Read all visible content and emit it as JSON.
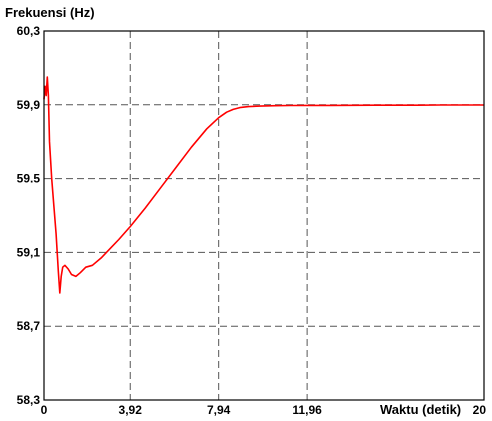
{
  "chart_data": {
    "type": "line",
    "ylabel": "Frekuensi (Hz)",
    "xlabel": "Waktu (detik)",
    "ylim": [
      58.3,
      60.3
    ],
    "xlim": [
      0,
      20
    ],
    "yticks": [
      {
        "value": 60.3,
        "label": "60,3"
      },
      {
        "value": 59.9,
        "label": "59,9"
      },
      {
        "value": 59.5,
        "label": "59.5"
      },
      {
        "value": 59.1,
        "label": "59,1"
      },
      {
        "value": 58.7,
        "label": "58,7"
      },
      {
        "value": 58.3,
        "label": "58,3"
      }
    ],
    "xticks": [
      {
        "value": 0,
        "label": "0"
      },
      {
        "value": 3.92,
        "label": "3,92"
      },
      {
        "value": 7.94,
        "label": "7,94"
      },
      {
        "value": 11.96,
        "label": "11,96"
      },
      {
        "value": 20,
        "label": "20"
      }
    ],
    "grid": true,
    "series": [
      {
        "color": "#ff0000",
        "x": [
          0,
          0.05,
          0.1,
          0.15,
          0.2,
          0.25,
          0.3,
          0.35,
          0.45,
          0.55,
          0.65,
          0.72,
          0.78,
          0.85,
          0.95,
          1.1,
          1.25,
          1.45,
          1.65,
          1.9,
          2.2,
          2.6,
          3.0,
          3.4,
          3.92,
          4.6,
          5.3,
          6.0,
          6.7,
          7.4,
          7.94,
          8.3,
          8.6,
          8.9,
          9.3,
          9.8,
          10.5,
          11.2,
          11.96,
          13,
          15,
          17,
          18,
          20
        ],
        "values": [
          59.93,
          60.0,
          59.95,
          60.05,
          59.95,
          59.7,
          59.6,
          59.5,
          59.35,
          59.2,
          59.0,
          58.88,
          58.97,
          59.02,
          59.03,
          59.01,
          58.98,
          58.97,
          58.99,
          59.02,
          59.03,
          59.07,
          59.12,
          59.17,
          59.24,
          59.34,
          59.45,
          59.56,
          59.67,
          59.77,
          59.83,
          59.86,
          59.875,
          59.885,
          59.89,
          59.893,
          59.895,
          59.896,
          59.897,
          59.897,
          59.898,
          59.898,
          59.899,
          59.899
        ]
      }
    ]
  }
}
